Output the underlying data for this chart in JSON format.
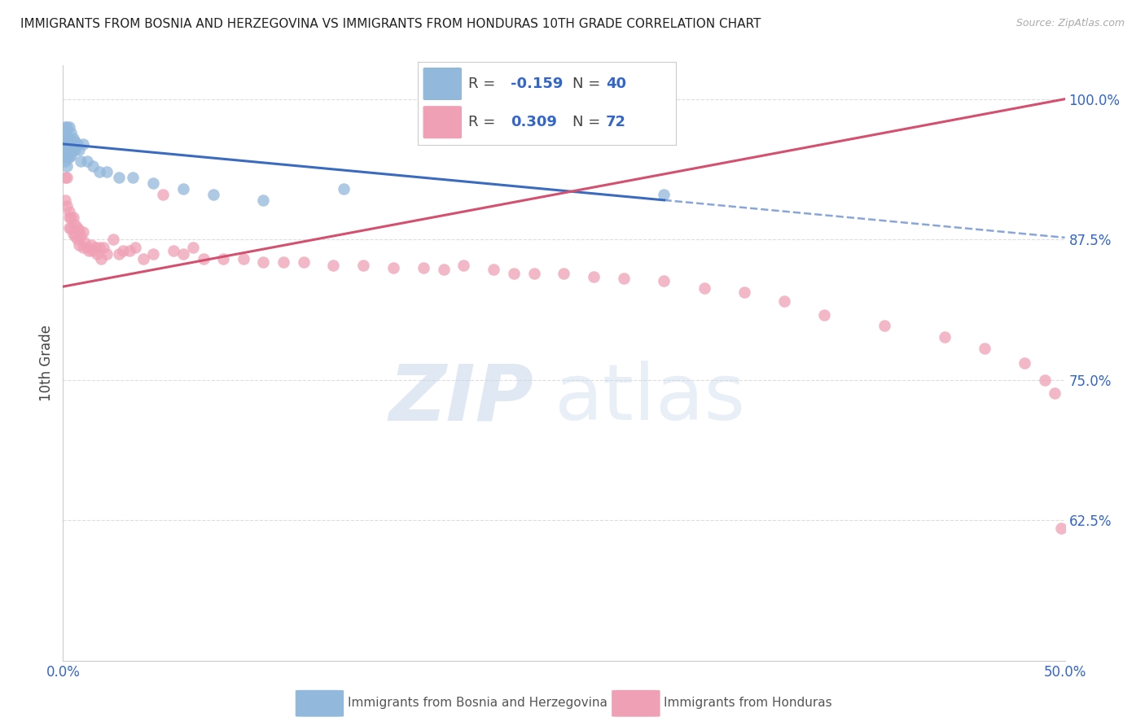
{
  "title": "IMMIGRANTS FROM BOSNIA AND HERZEGOVINA VS IMMIGRANTS FROM HONDURAS 10TH GRADE CORRELATION CHART",
  "source": "Source: ZipAtlas.com",
  "ylabel": "10th Grade",
  "blue_color": "#92b8dc",
  "pink_color": "#f0a0b5",
  "line_blue_color": "#3a6bbf",
  "line_pink_color": "#d45070",
  "tick_color": "#3366cc",
  "grid_color": "#dddddd",
  "title_color": "#222222",
  "source_color": "#aaaaaa",
  "legend_r_blue": "-0.159",
  "legend_n_blue": "40",
  "legend_r_pink": "0.309",
  "legend_n_pink": "72",
  "xlim": [
    0.0,
    0.5
  ],
  "ylim": [
    0.5,
    1.03
  ],
  "yticks": [
    0.625,
    0.75,
    0.875,
    1.0
  ],
  "ytick_labels": [
    "62.5%",
    "75.0%",
    "87.5%",
    "100.0%"
  ],
  "blue_x": [
    0.0,
    0.0,
    0.001,
    0.001,
    0.001,
    0.001,
    0.001,
    0.002,
    0.002,
    0.002,
    0.002,
    0.002,
    0.002,
    0.003,
    0.003,
    0.003,
    0.003,
    0.004,
    0.004,
    0.004,
    0.005,
    0.005,
    0.006,
    0.006,
    0.007,
    0.008,
    0.009,
    0.01,
    0.012,
    0.015,
    0.018,
    0.022,
    0.028,
    0.035,
    0.045,
    0.06,
    0.075,
    0.1,
    0.14,
    0.3
  ],
  "blue_y": [
    0.96,
    0.95,
    0.97,
    0.975,
    0.965,
    0.955,
    0.945,
    0.975,
    0.965,
    0.96,
    0.955,
    0.948,
    0.94,
    0.975,
    0.965,
    0.955,
    0.948,
    0.97,
    0.96,
    0.95,
    0.965,
    0.955,
    0.962,
    0.955,
    0.96,
    0.955,
    0.945,
    0.96,
    0.945,
    0.94,
    0.935,
    0.935,
    0.93,
    0.93,
    0.925,
    0.92,
    0.915,
    0.91,
    0.92,
    0.915
  ],
  "pink_x": [
    0.001,
    0.001,
    0.002,
    0.002,
    0.003,
    0.003,
    0.003,
    0.004,
    0.004,
    0.005,
    0.005,
    0.006,
    0.006,
    0.007,
    0.007,
    0.008,
    0.008,
    0.009,
    0.01,
    0.01,
    0.011,
    0.012,
    0.013,
    0.014,
    0.015,
    0.016,
    0.017,
    0.018,
    0.019,
    0.02,
    0.022,
    0.025,
    0.028,
    0.03,
    0.033,
    0.036,
    0.04,
    0.045,
    0.05,
    0.055,
    0.06,
    0.065,
    0.07,
    0.08,
    0.09,
    0.1,
    0.11,
    0.12,
    0.135,
    0.15,
    0.165,
    0.18,
    0.19,
    0.2,
    0.215,
    0.225,
    0.235,
    0.25,
    0.265,
    0.28,
    0.3,
    0.32,
    0.34,
    0.36,
    0.38,
    0.41,
    0.44,
    0.46,
    0.48,
    0.49,
    0.495,
    0.498
  ],
  "pink_y": [
    0.93,
    0.91,
    0.93,
    0.905,
    0.9,
    0.895,
    0.885,
    0.895,
    0.885,
    0.895,
    0.88,
    0.888,
    0.878,
    0.885,
    0.875,
    0.883,
    0.87,
    0.878,
    0.882,
    0.868,
    0.872,
    0.868,
    0.865,
    0.87,
    0.865,
    0.868,
    0.862,
    0.868,
    0.858,
    0.868,
    0.862,
    0.875,
    0.862,
    0.865,
    0.865,
    0.868,
    0.858,
    0.862,
    0.915,
    0.865,
    0.862,
    0.868,
    0.858,
    0.858,
    0.858,
    0.855,
    0.855,
    0.855,
    0.852,
    0.852,
    0.85,
    0.85,
    0.848,
    0.852,
    0.848,
    0.845,
    0.845,
    0.845,
    0.842,
    0.84,
    0.838,
    0.832,
    0.828,
    0.82,
    0.808,
    0.798,
    0.788,
    0.778,
    0.765,
    0.75,
    0.738,
    0.618
  ]
}
